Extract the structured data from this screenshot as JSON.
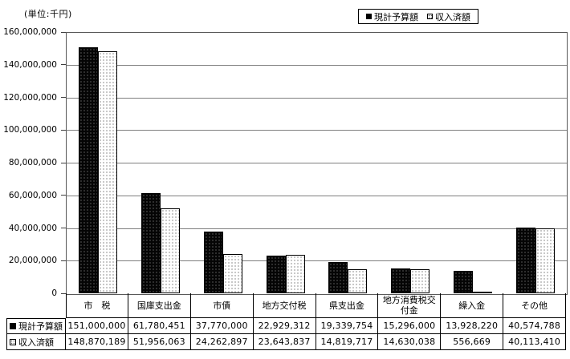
{
  "unit_label": "(単位:千円)",
  "legend": {
    "position": "top-right",
    "items": [
      {
        "label": "現計予算額",
        "swatch": "filled-black-square"
      },
      {
        "label": "収入済額",
        "swatch": "dotted-white-square"
      }
    ]
  },
  "chart_data": {
    "type": "bar",
    "title": "",
    "unit": "千円",
    "categories": [
      "市　税",
      "国庫支出金",
      "市債",
      "地方交付税",
      "県支出金",
      "地方消費税交付金",
      "繰入金",
      "その他"
    ],
    "series": [
      {
        "name": "現計予算額",
        "style": "solid-black",
        "values": [
          151000000,
          61780451,
          37770000,
          22929312,
          19339754,
          15296000,
          13928220,
          40574788
        ]
      },
      {
        "name": "収入済額",
        "style": "dotted-white",
        "values": [
          148870189,
          51956063,
          24262897,
          23643837,
          14819717,
          14630038,
          556669,
          40113410
        ]
      }
    ],
    "ylim": [
      0,
      160000000
    ],
    "ytick_interval": 20000000,
    "yticks": [
      "0",
      "20,000,000",
      "40,000,000",
      "60,000,000",
      "80,000,000",
      "100,000,000",
      "120,000,000",
      "140,000,000",
      "160,000,000"
    ],
    "grid": true,
    "legend_position": "top-right"
  },
  "table": {
    "row_labels": [
      {
        "marker": "filled-black-square",
        "label": "現計予算額"
      },
      {
        "marker": "dotted-white-square",
        "label": "収入済額"
      }
    ],
    "columns": [
      "市　税",
      "国庫支出金",
      "市債",
      "地方交付税",
      "県支出金",
      "地方消費税交付金",
      "繰入金",
      "その他"
    ],
    "rows": [
      [
        "151,000,000",
        "61,780,451",
        "37,770,000",
        "22,929,312",
        "19,339,754",
        "15,296,000",
        "13,928,220",
        "40,574,788"
      ],
      [
        "148,870,189",
        "51,956,063",
        "24,262,897",
        "23,643,837",
        "14,819,717",
        "14,630,038",
        "556,669",
        "40,113,410"
      ]
    ]
  }
}
